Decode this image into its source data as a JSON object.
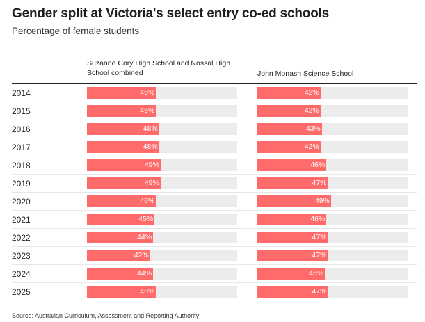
{
  "header": {
    "title": "Gender split at Victoria's select entry co-ed schools",
    "subtitle": "Percentage of female students"
  },
  "source": "Source: Australian Curriculum, Assessment and Reporting Authority",
  "colors": {
    "bar": "#ff6b6b",
    "track": "#ececec"
  },
  "chart_data": {
    "type": "bar",
    "title": "Gender split at Victoria's select entry co-ed schools",
    "subtitle": "Percentage of female students",
    "categories": [
      "2014",
      "2015",
      "2016",
      "2017",
      "2018",
      "2019",
      "2020",
      "2021",
      "2022",
      "2023",
      "2024",
      "2025"
    ],
    "ylim": [
      0,
      100
    ],
    "unit": "%",
    "series": [
      {
        "name": "Suzanne Cory High School and Nossal High School combined",
        "values": [
          46,
          46,
          48,
          48,
          49,
          49,
          46,
          45,
          44,
          42,
          44,
          46
        ]
      },
      {
        "name": "John Monash Science School",
        "values": [
          42,
          42,
          43,
          42,
          46,
          47,
          49,
          46,
          47,
          47,
          45,
          47
        ]
      }
    ]
  }
}
